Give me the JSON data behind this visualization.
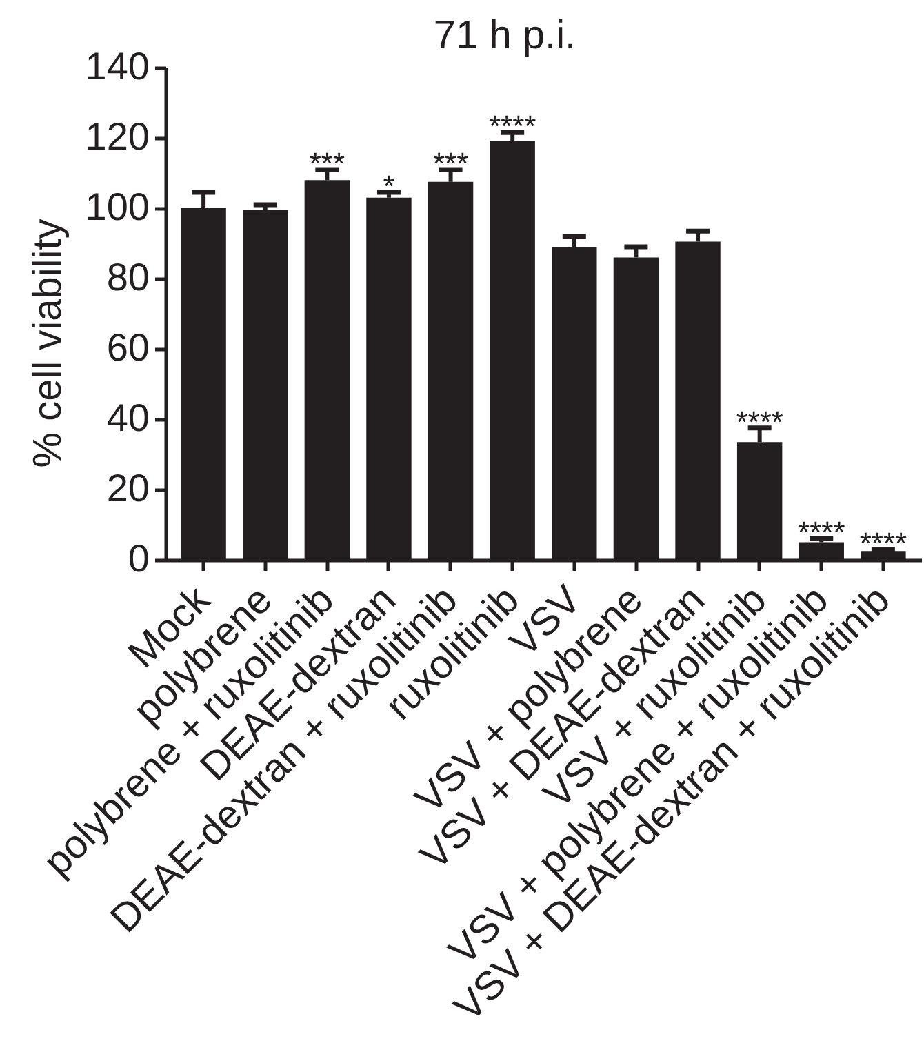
{
  "chart_data": {
    "type": "bar",
    "title": "71 h p.i.",
    "ylabel": "% cell viability",
    "categories": [
      "Mock",
      "polybrene",
      "polybrene + ruxolitinib",
      "DEAE-dextran",
      "DEAE-dextran + ruxolitinib",
      "ruxolitinib",
      "VSV",
      "VSV + polybrene",
      "VSV + DEAE-dextran",
      "VSV + ruxolitinib",
      "VSV + polybrene + ruxolitinib",
      "VSV + DEAE-dextran + ruxolitinib"
    ],
    "values": [
      100,
      99.5,
      108,
      103,
      107.5,
      119,
      89,
      86,
      90.5,
      33.5,
      5,
      2.5
    ],
    "errors": [
      [
        100,
        104.5
      ],
      [
        99.5,
        101
      ],
      [
        108,
        111
      ],
      [
        103,
        104.5
      ],
      [
        107.5,
        111
      ],
      [
        119,
        121.5
      ],
      [
        89,
        92
      ],
      [
        86,
        89
      ],
      [
        90.5,
        93.5
      ],
      [
        33.5,
        37.5
      ],
      [
        5,
        6
      ],
      [
        2.5,
        3
      ]
    ],
    "color": "#231f20",
    "ylim": [
      0,
      140
    ],
    "yticks": [
      0,
      20,
      40,
      60,
      80,
      100,
      120,
      140
    ],
    "annotations": [
      {
        "text": "***",
        "x": "polybrene + ruxolitinib",
        "y": 108
      },
      {
        "text": "*",
        "x": "DEAE-dextran",
        "y": 103
      },
      {
        "text": "***",
        "x": "DEAE-dextran + ruxolitinib",
        "y": 107.5
      },
      {
        "text": "****",
        "x": "ruxolitinib",
        "y": 119
      },
      {
        "text": "****",
        "x": "VSV + ruxolitinib",
        "y": 33.5
      },
      {
        "text": "****",
        "x": "VSV + polybrene + ruxolitinib",
        "y": 5
      },
      {
        "text": "****",
        "x": "VSV + DEAE-dextran + ruxolitinib",
        "y": 2.5
      }
    ]
  }
}
